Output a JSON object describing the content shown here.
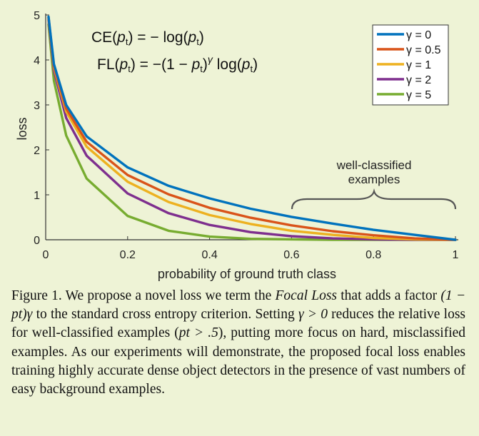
{
  "chart_data": {
    "type": "line",
    "title": "",
    "xlabel": "probability of ground truth class",
    "ylabel": "loss",
    "xlim": [
      0,
      1
    ],
    "ylim": [
      0,
      5
    ],
    "xticks": [
      "0",
      "0.2",
      "0.4",
      "0.6",
      "0.8",
      "1"
    ],
    "yticks": [
      "0",
      "1",
      "2",
      "3",
      "4",
      "5"
    ],
    "x": [
      0.007,
      0.02,
      0.05,
      0.1,
      0.2,
      0.3,
      0.4,
      0.5,
      0.6,
      0.7,
      0.8,
      0.9,
      1.0
    ],
    "series": [
      {
        "name": "γ = 0",
        "color": "#0072bd",
        "values": [
          4.96,
          3.91,
          3.0,
          2.3,
          1.61,
          1.2,
          0.92,
          0.69,
          0.51,
          0.36,
          0.22,
          0.11,
          0.0
        ]
      },
      {
        "name": "γ = 0.5",
        "color": "#d95319",
        "values": [
          4.94,
          3.87,
          2.92,
          2.18,
          1.44,
          1.01,
          0.71,
          0.49,
          0.32,
          0.19,
          0.1,
          0.03,
          0.0
        ]
      },
      {
        "name": "γ = 1",
        "color": "#edb120",
        "values": [
          4.93,
          3.83,
          2.85,
          2.07,
          1.29,
          0.84,
          0.55,
          0.35,
          0.2,
          0.11,
          0.04,
          0.01,
          0.0
        ]
      },
      {
        "name": "γ = 2",
        "color": "#7e2f8e",
        "values": [
          4.89,
          3.76,
          2.71,
          1.87,
          1.03,
          0.59,
          0.33,
          0.17,
          0.08,
          0.03,
          0.01,
          0.0,
          0.0
        ]
      },
      {
        "name": "γ = 5",
        "color": "#77ac30",
        "values": [
          4.79,
          3.54,
          2.32,
          1.36,
          0.53,
          0.2,
          0.07,
          0.02,
          0.01,
          0.0,
          0.0,
          0.0,
          0.0
        ]
      }
    ],
    "legend": "top-right",
    "grid": false,
    "annotations": [
      "well-classified",
      "examples"
    ],
    "equations": [
      "CE(pt) = − log(pt)",
      "FL(pt) = −(1 − pt)γ log(pt)"
    ]
  },
  "caption": [
    "Figure 1. We propose a novel loss we term the ",
    "Focal Loss",
    " that adds a factor ",
    "(1 − pt)γ",
    " to the standard cross entropy criterion. Setting ",
    "γ > 0",
    " reduces the relative loss for well-classified examples (",
    "pt > .5",
    "), putting more focus on hard, misclassified examples. As our experiments will demonstrate, the proposed focal loss enables training highly accurate dense object detectors in the presence of vast numbers of easy background examples."
  ]
}
